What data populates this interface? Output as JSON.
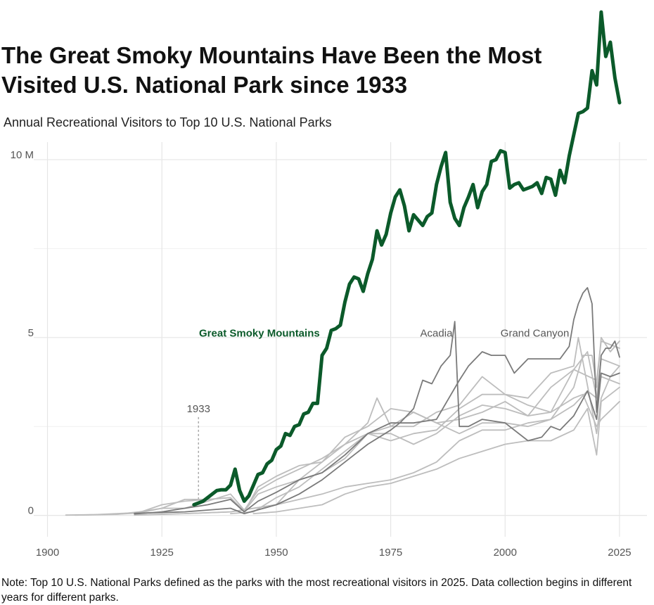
{
  "chart_data": {
    "type": "line",
    "title": "The Great Smoky Mountains Have Been the Most Visited U.S. National Park since 1933",
    "subtitle": "Annual Recreational Visitors to Top 10 U.S. National Parks",
    "note": "Note: Top 10 U.S. National Parks defined as the parks with the most recreational visitors in 2025. Data collection begins in different years for different parks.",
    "xlim": [
      1897,
      2031
    ],
    "xticks": [
      1900,
      1925,
      1950,
      1975,
      2000,
      2025
    ],
    "ylim": [
      -0.6,
      14.25
    ],
    "yticks": [
      0,
      5,
      {
        "value": 10,
        "label": "10 M"
      }
    ],
    "y_minor_gridlines": [
      2.5,
      7.5
    ],
    "grid": true,
    "annotation": {
      "text": "1933",
      "x": 1933
    },
    "series": [
      {
        "name": "Great Smoky Mountains",
        "color": "#0b5a2a",
        "x": [
          1932,
          1933,
          1934,
          1935,
          1936,
          1937,
          1938,
          1939,
          1940,
          1941,
          1942,
          1943,
          1944,
          1945,
          1946,
          1947,
          1948,
          1949,
          1950,
          1951,
          1952,
          1953,
          1954,
          1955,
          1956,
          1957,
          1958,
          1959,
          1960,
          1961,
          1962,
          1963,
          1964,
          1965,
          1966,
          1967,
          1968,
          1969,
          1970,
          1971,
          1972,
          1973,
          1974,
          1975,
          1976,
          1977,
          1978,
          1979,
          1980,
          1981,
          1982,
          1983,
          1984,
          1985,
          1986,
          1987,
          1988,
          1989,
          1990,
          1991,
          1992,
          1993,
          1994,
          1995,
          1996,
          1997,
          1998,
          1999,
          2000,
          2001,
          2002,
          2003,
          2004,
          2005,
          2006,
          2007,
          2008,
          2009,
          2010,
          2011,
          2012,
          2013,
          2014,
          2015,
          2016,
          2017,
          2018,
          2019,
          2020,
          2021,
          2022,
          2023,
          2024,
          2025
        ],
        "values": [
          0.3,
          0.35,
          0.4,
          0.5,
          0.6,
          0.7,
          0.72,
          0.72,
          0.85,
          1.3,
          0.7,
          0.4,
          0.55,
          0.85,
          1.15,
          1.2,
          1.45,
          1.55,
          1.85,
          1.95,
          2.3,
          2.25,
          2.5,
          2.55,
          2.85,
          2.9,
          3.15,
          3.15,
          4.5,
          4.7,
          5.2,
          5.25,
          5.35,
          6.0,
          6.5,
          6.7,
          6.65,
          6.3,
          6.8,
          7.2,
          8.0,
          7.6,
          7.9,
          8.5,
          8.95,
          9.15,
          8.7,
          8.0,
          8.45,
          8.3,
          8.15,
          8.4,
          8.5,
          9.3,
          9.8,
          10.2,
          8.8,
          8.35,
          8.15,
          8.65,
          8.95,
          9.3,
          8.65,
          9.1,
          9.3,
          9.95,
          10.0,
          10.25,
          10.2,
          9.2,
          9.3,
          9.35,
          9.15,
          9.2,
          9.25,
          9.35,
          9.05,
          9.5,
          9.45,
          9.0,
          9.7,
          9.35,
          10.1,
          10.7,
          11.3,
          11.35,
          11.45,
          12.5,
          12.1,
          14.15,
          12.9,
          13.3,
          12.3,
          11.6
        ]
      },
      {
        "name": "Acadia",
        "color": "#7a7a7a",
        "x": [
          1919,
          1930,
          1940,
          1943,
          1950,
          1955,
          1960,
          1965,
          1970,
          1975,
          1977,
          1980,
          1982,
          1984,
          1986,
          1988,
          1989,
          1990,
          1992,
          1995,
          2000,
          2005,
          2008,
          2010,
          2012,
          2015,
          2018,
          2020,
          2021,
          2023,
          2025
        ],
        "values": [
          0.06,
          0.1,
          0.2,
          0.05,
          0.3,
          0.6,
          1.0,
          1.5,
          2.0,
          2.4,
          2.6,
          3.0,
          3.8,
          3.7,
          4.2,
          4.5,
          5.45,
          2.5,
          2.5,
          2.7,
          2.6,
          2.1,
          2.2,
          2.5,
          2.4,
          2.8,
          3.5,
          2.7,
          4.0,
          3.9,
          4.0
        ]
      },
      {
        "name": "Grand Canyon",
        "color": "#7a7a7a",
        "x": [
          1919,
          1925,
          1930,
          1935,
          1940,
          1943,
          1946,
          1950,
          1955,
          1960,
          1965,
          1970,
          1975,
          1980,
          1985,
          1990,
          1992,
          1995,
          1997,
          2000,
          2002,
          2005,
          2008,
          2010,
          2012,
          2014,
          2015,
          2016,
          2017,
          2018,
          2019,
          2020,
          2021,
          2022,
          2023,
          2024,
          2025
        ],
        "values": [
          0.04,
          0.1,
          0.2,
          0.3,
          0.45,
          0.1,
          0.4,
          0.65,
          1.0,
          1.2,
          1.7,
          2.3,
          2.6,
          2.6,
          2.7,
          3.8,
          4.2,
          4.6,
          4.5,
          4.5,
          4.0,
          4.4,
          4.4,
          4.4,
          4.4,
          4.75,
          5.5,
          5.95,
          6.25,
          6.4,
          5.95,
          2.9,
          4.5,
          4.7,
          4.7,
          4.9,
          4.45
        ]
      },
      {
        "color": "#bdbdbd",
        "x": [
          1904,
          1910,
          1915,
          1920,
          1925,
          1930,
          1935,
          1940,
          1943,
          1946,
          1950,
          1955,
          1960,
          1965,
          1970,
          1975,
          1980,
          1985,
          1990,
          1995,
          2000,
          2005,
          2010,
          2015,
          2020,
          2021,
          2025
        ],
        "values": [
          0.01,
          0.02,
          0.05,
          0.08,
          0.3,
          0.4,
          0.45,
          0.5,
          0.1,
          0.8,
          1.1,
          1.4,
          1.5,
          2.0,
          2.3,
          2.3,
          2.0,
          2.3,
          2.8,
          3.1,
          3.0,
          2.8,
          3.6,
          4.1,
          3.8,
          4.9,
          4.7
        ]
      },
      {
        "color": "#bdbdbd",
        "x": [
          1906,
          1915,
          1920,
          1925,
          1930,
          1935,
          1940,
          1943,
          1946,
          1950,
          1955,
          1960,
          1965,
          1970,
          1975,
          1980,
          1985,
          1990,
          1995,
          2000,
          2005,
          2010,
          2015,
          2016,
          2020,
          2021,
          2023,
          2025
        ],
        "values": [
          0.01,
          0.03,
          0.07,
          0.2,
          0.45,
          0.45,
          0.5,
          0.12,
          0.6,
          0.8,
          1.0,
          1.2,
          1.6,
          2.3,
          2.5,
          2.5,
          2.9,
          3.1,
          3.9,
          3.4,
          3.3,
          4.0,
          4.2,
          5.0,
          2.3,
          3.3,
          3.9,
          4.2
        ]
      },
      {
        "color": "#bdbdbd",
        "x": [
          1919,
          1930,
          1940,
          1950,
          1960,
          1965,
          1970,
          1975,
          1980,
          1985,
          1990,
          1995,
          2000,
          2005,
          2010,
          2015,
          2017,
          2019,
          2020,
          2021,
          2023,
          2025
        ],
        "values": [
          0.01,
          0.05,
          0.1,
          0.3,
          0.6,
          0.8,
          0.9,
          1.0,
          1.2,
          1.5,
          2.1,
          2.4,
          2.4,
          2.6,
          2.7,
          3.6,
          4.5,
          4.5,
          3.6,
          5.0,
          4.6,
          4.9
        ]
      },
      {
        "color": "#bdbdbd",
        "x": [
          1915,
          1920,
          1925,
          1930,
          1940,
          1943,
          1946,
          1950,
          1955,
          1960,
          1965,
          1970,
          1972,
          1975,
          1980,
          1985,
          1990,
          1995,
          2000,
          2005,
          2010,
          2015,
          2018,
          2020,
          2021,
          2025
        ],
        "values": [
          0.03,
          0.1,
          0.2,
          0.2,
          0.6,
          0.15,
          0.7,
          1.0,
          1.3,
          1.6,
          2.0,
          2.6,
          3.3,
          2.5,
          2.9,
          2.6,
          2.7,
          2.9,
          3.2,
          2.8,
          2.9,
          4.1,
          4.6,
          3.3,
          4.4,
          4.2
        ]
      },
      {
        "color": "#bdbdbd",
        "x": [
          1930,
          1940,
          1950,
          1955,
          1960,
          1965,
          1970,
          1975,
          1980,
          1985,
          1990,
          1995,
          2000,
          2005,
          2010,
          2015,
          2018,
          2020,
          2021,
          2025
        ],
        "values": [
          0.05,
          0.1,
          0.3,
          1.0,
          1.5,
          2.2,
          2.5,
          3.0,
          2.9,
          2.6,
          2.3,
          2.6,
          2.6,
          2.5,
          2.7,
          3.1,
          3.5,
          3.3,
          3.9,
          3.7
        ]
      },
      {
        "color": "#bdbdbd",
        "x": [
          1940,
          1945,
          1950,
          1955,
          1960,
          1965,
          1970,
          1975,
          1980,
          1985,
          1990,
          1995,
          2000,
          2005,
          2010,
          2015,
          2017,
          2020,
          2021,
          2025
        ],
        "values": [
          0.05,
          0.1,
          0.5,
          0.8,
          1.3,
          1.8,
          2.3,
          2.1,
          2.3,
          2.4,
          3.0,
          3.4,
          3.4,
          3.1,
          2.9,
          3.3,
          3.4,
          2.5,
          2.7,
          3.2
        ]
      },
      {
        "color": "#bdbdbd",
        "x": [
          1945,
          1950,
          1960,
          1965,
          1970,
          1975,
          1980,
          1985,
          1990,
          1995,
          2000,
          2005,
          2010,
          2015,
          2018,
          2020,
          2021,
          2025
        ],
        "values": [
          0.05,
          0.1,
          0.3,
          0.6,
          0.8,
          0.9,
          1.1,
          1.3,
          1.6,
          1.8,
          2.0,
          2.1,
          2.1,
          2.4,
          3.0,
          1.7,
          3.2,
          3.6
        ]
      }
    ]
  }
}
